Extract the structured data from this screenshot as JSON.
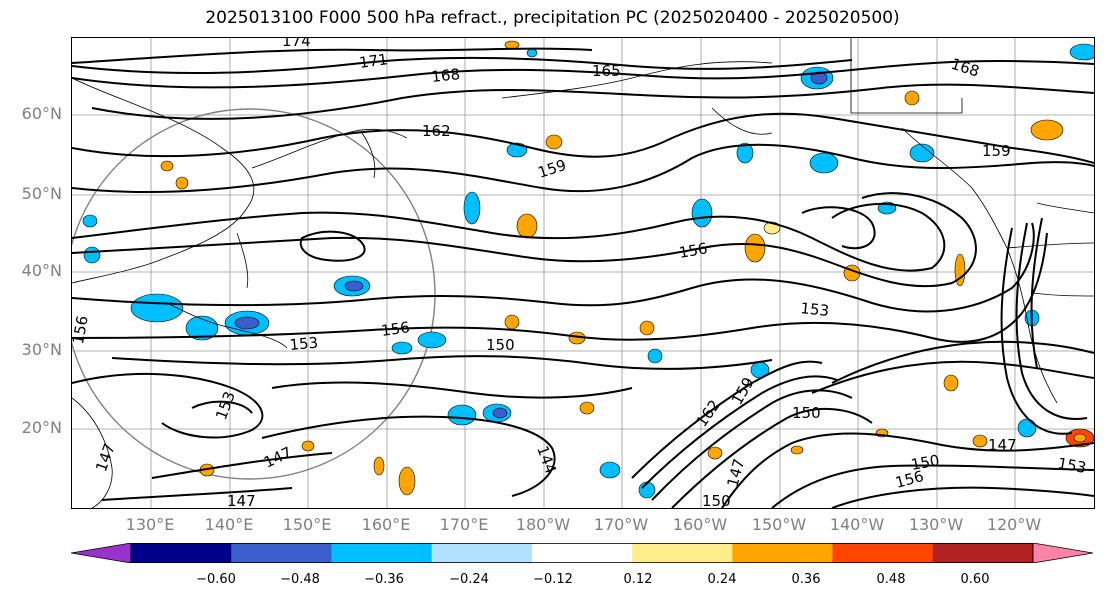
{
  "title": "2025013100 F000 500 hPa refract., precipitation PC (2025020400 - 2025020500)",
  "lat_labels": [
    "60°N",
    "50°N",
    "40°N",
    "30°N",
    "20°N"
  ],
  "lon_labels": [
    "130°E",
    "140°E",
    "150°E",
    "160°E",
    "170°E",
    "180°W",
    "170°W",
    "160°W",
    "150°W",
    "140°W",
    "130°W",
    "120°W"
  ],
  "contour_labels": [
    "174",
    "171",
    "168",
    "165",
    "162",
    "159",
    "156",
    "153",
    "150",
    "147",
    "144",
    "168",
    "159",
    "156",
    "153",
    "150",
    "147",
    "150",
    "147",
    "153",
    "156",
    "162",
    "159",
    "147",
    "156",
    "153",
    "150",
    "147"
  ],
  "colorbar": {
    "ticks": [
      "−0.60",
      "−0.48",
      "−0.36",
      "−0.24",
      "−0.12",
      "0.12",
      "0.24",
      "0.36",
      "0.48",
      "0.60"
    ],
    "colors": [
      "#9932cc",
      "#00008b",
      "#3a5fcd",
      "#00bfff",
      "#b0e2ff",
      "#ffffff",
      "#ffec8b",
      "#ffa500",
      "#ff4500",
      "#b22222",
      "#ff82ab"
    ]
  },
  "colors": {
    "contour": "#000000",
    "grid": "#808080",
    "axis_label": "#808080"
  }
}
